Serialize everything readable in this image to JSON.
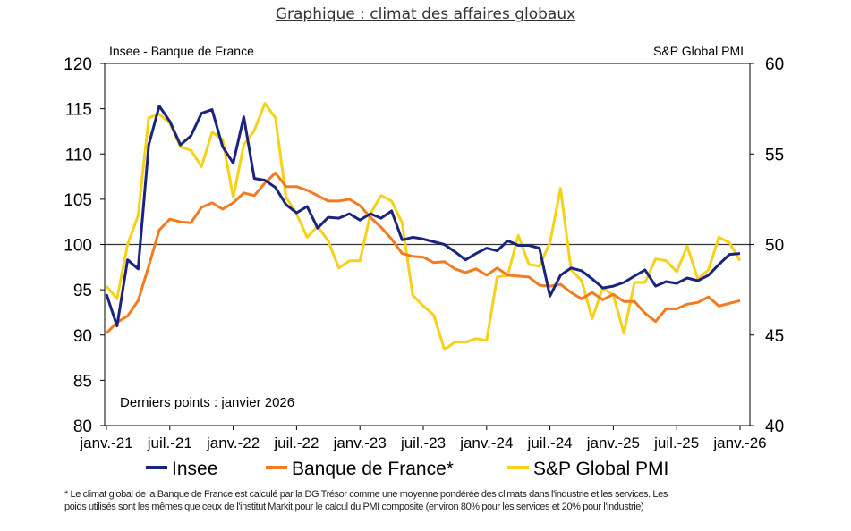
{
  "page_title": "Graphique : climat des affaires globaux",
  "footnote": {
    "line1": "* Le climat global de la Banque de France est calculé par la DG Trésor comme une moyenne pondérée des climats dans l'industrie et les services. Les",
    "line2": "poids utilisés sont les mêmes que ceux de l'institut Markit pour le calcul du PMI composite (environ 80% pour les services et 20% pour l'industrie)"
  },
  "chart_data": {
    "type": "line",
    "title": "Graphique : climat des affaires globaux",
    "left_axis_label": "Insee - Banque de France",
    "right_axis_label": "S&P Global PMI",
    "annotation": "Derniers points : janvier 2026",
    "ylim_left": [
      80,
      120
    ],
    "ylim_right": [
      40,
      60
    ],
    "left_ticks": [
      80,
      85,
      90,
      95,
      100,
      105,
      110,
      115,
      120
    ],
    "right_ticks": [
      40,
      45,
      50,
      55,
      60
    ],
    "reference_line_left": 100,
    "x_tick_labels": [
      "janv.-21",
      "juil.-21",
      "janv.-22",
      "juil.-22",
      "janv.-23",
      "juil.-23",
      "janv.-24",
      "juil.-24",
      "janv.-25",
      "juil.-25",
      "janv.-26"
    ],
    "colors": {
      "Insee": "#1a237e",
      "Banque de France*": "#f47a20",
      "S&P Global PMI": "#f7d117"
    },
    "series": [
      {
        "name": "Insee",
        "axis": "left",
        "values": [
          94.5,
          91,
          98.3,
          97.3,
          111,
          115.3,
          113.6,
          111,
          112,
          114.5,
          114.9,
          110.8,
          109,
          114.1,
          107.3,
          107.1,
          106.3,
          104.4,
          103.5,
          104.2,
          101.8,
          103,
          102.9,
          103.4,
          102.7,
          103.4,
          102.9,
          103.7,
          100.5,
          100.8,
          100.6,
          100.3,
          100,
          99.2,
          98.3,
          99,
          99.6,
          99.3,
          100.4,
          99.9,
          99.9,
          99.6,
          94.3,
          96.6,
          97.4,
          97.1,
          96.2,
          95.2,
          95.4,
          95.8,
          96.5,
          97.2,
          95.4,
          95.9,
          95.7,
          96.3,
          96,
          96.6,
          97.8,
          98.9,
          99
        ]
      },
      {
        "name": "Banque de France*",
        "axis": "left",
        "values": [
          90.2,
          91.4,
          92.1,
          93.8,
          97.6,
          101.6,
          102.8,
          102.5,
          102.4,
          104.1,
          104.6,
          103.9,
          104.6,
          105.7,
          105.4,
          106.8,
          107.9,
          106.4,
          106.4,
          106,
          105.4,
          104.8,
          104.8,
          105,
          104.3,
          103,
          101.9,
          100.6,
          99,
          98.7,
          98.6,
          98,
          98.1,
          97.3,
          96.9,
          97.3,
          96.6,
          97.4,
          96.6,
          96.5,
          96.4,
          95.5,
          95.4,
          95.6,
          94.7,
          94,
          94.7,
          93.9,
          94.5,
          93.7,
          93.7,
          92.4,
          91.5,
          92.9,
          92.9,
          93.4,
          93.6,
          94.2,
          93.2,
          93.5,
          93.8
        ]
      },
      {
        "name": "S&P Global PMI",
        "axis": "right",
        "values": [
          47.7,
          47,
          50,
          51.6,
          57,
          57.2,
          56.7,
          55.4,
          55.2,
          54.3,
          56.2,
          55.8,
          52.6,
          55.5,
          56.3,
          57.8,
          57,
          52.6,
          51.7,
          50.4,
          51,
          50.2,
          48.7,
          49.1,
          49.1,
          51.7,
          52.7,
          52.4,
          51.2,
          47.2,
          46.6,
          46.1,
          44.2,
          44.6,
          44.6,
          44.8,
          44.7,
          48.2,
          48.3,
          50.5,
          48.9,
          48.8,
          50.1,
          53.1,
          48.6,
          48,
          45.9,
          47.6,
          47.2,
          45.1,
          47.9,
          47.9,
          49.2,
          49.1,
          48.5,
          49.9,
          48.1,
          48.6,
          50.4,
          50.1,
          49.1
        ]
      }
    ]
  }
}
